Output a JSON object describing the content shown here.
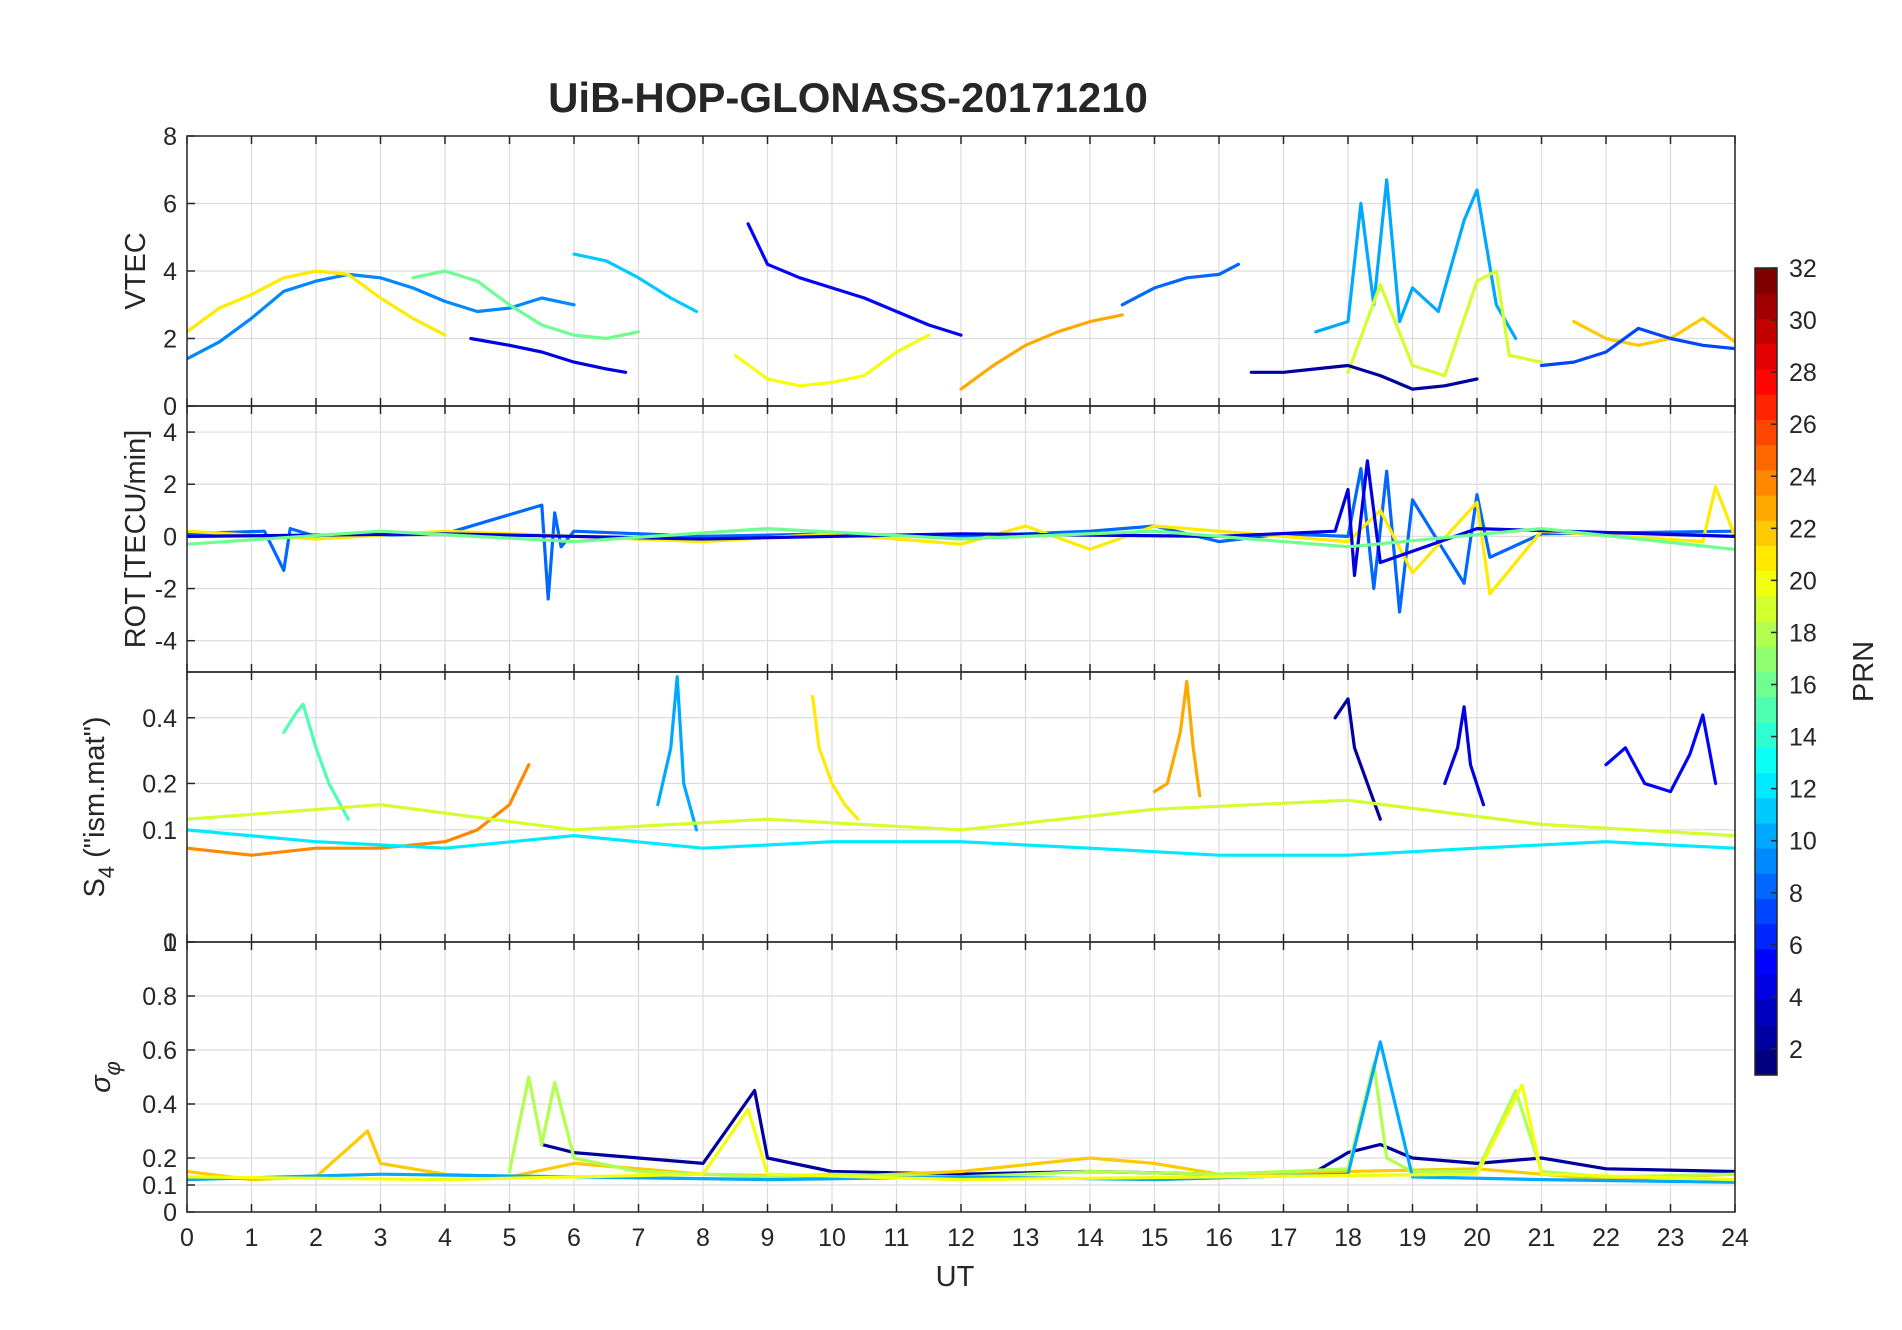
{
  "chart_data": [
    {
      "panel": "vtec",
      "type": "line",
      "title": "UiB-HOP-GLONASS-20171210",
      "ylabel": "VTEC",
      "ylim": [
        0,
        8
      ],
      "yticks": [
        "0",
        "2",
        "4",
        "6",
        "8"
      ],
      "xlim": [
        0,
        24
      ],
      "grid": true,
      "series": [
        {
          "name": "PRN 9",
          "prn": 9,
          "x": [
            0,
            0.5,
            1,
            1.5,
            2,
            2.5,
            3,
            3.5,
            4,
            4.5,
            5,
            5.5,
            6
          ],
          "values": [
            1.4,
            1.9,
            2.6,
            3.4,
            3.7,
            3.9,
            3.8,
            3.5,
            3.1,
            2.8,
            2.9,
            3.2,
            3.0
          ]
        },
        {
          "name": "PRN 21",
          "prn": 21,
          "x": [
            0,
            0.5,
            1,
            1.5,
            2,
            2.5,
            3,
            3.5,
            4
          ],
          "values": [
            2.2,
            2.9,
            3.3,
            3.8,
            4.0,
            3.9,
            3.2,
            2.6,
            2.1
          ]
        },
        {
          "name": "PRN 4",
          "prn": 4,
          "x": [
            4.4,
            5,
            5.5,
            6,
            6.5,
            6.8
          ],
          "values": [
            2.0,
            1.8,
            1.6,
            1.3,
            1.1,
            1.0
          ]
        },
        {
          "name": "PRN 5",
          "prn": 5,
          "x": [
            8.7,
            9,
            9.5,
            10,
            10.5,
            11,
            11.5,
            12
          ],
          "values": [
            5.4,
            4.2,
            3.8,
            3.5,
            3.2,
            2.8,
            2.4,
            2.1
          ]
        },
        {
          "name": "PRN 11",
          "prn": 11,
          "x": [
            6,
            6.5,
            7,
            7.5,
            7.9
          ],
          "values": [
            4.5,
            4.3,
            3.8,
            3.2,
            2.8
          ]
        },
        {
          "name": "PRN 20",
          "prn": 20,
          "x": [
            8.5,
            9,
            9.5,
            10,
            10.5,
            11,
            11.5
          ],
          "values": [
            1.5,
            0.8,
            0.6,
            0.7,
            0.9,
            1.6,
            2.1
          ]
        },
        {
          "name": "PRN 16",
          "prn": 16,
          "x": [
            3.5,
            4,
            4.5,
            5,
            5.5,
            6,
            6.5,
            7
          ],
          "values": [
            3.8,
            4.0,
            3.7,
            3.0,
            2.4,
            2.1,
            2.0,
            2.2
          ]
        },
        {
          "name": "PRN 23",
          "prn": 23,
          "x": [
            12,
            12.5,
            13,
            13.5,
            14,
            14.5
          ],
          "values": [
            0.5,
            1.2,
            1.8,
            2.2,
            2.5,
            2.7
          ]
        },
        {
          "name": "PRN 8",
          "prn": 8,
          "x": [
            14.5,
            15,
            15.5,
            16,
            16.3
          ],
          "values": [
            3.0,
            3.5,
            3.8,
            3.9,
            4.2
          ]
        },
        {
          "name": "PRN 10",
          "prn": 10,
          "x": [
            17.5,
            18,
            18.2,
            18.4,
            18.6,
            18.8,
            19,
            19.4,
            19.8,
            20,
            20.3,
            20.6
          ],
          "values": [
            2.2,
            2.5,
            6.0,
            3.0,
            6.7,
            2.5,
            3.5,
            2.8,
            5.5,
            6.4,
            3.0,
            2.0
          ]
        },
        {
          "name": "PRN 19",
          "prn": 19,
          "x": [
            18,
            18.5,
            19,
            19.5,
            20,
            20.3,
            20.5,
            21
          ],
          "values": [
            1.0,
            3.6,
            1.2,
            0.9,
            3.7,
            4.0,
            1.5,
            1.3
          ]
        },
        {
          "name": "PRN 2",
          "prn": 2,
          "x": [
            16.5,
            17,
            17.5,
            18,
            18.5,
            19,
            19.5,
            20
          ],
          "values": [
            1.0,
            1.0,
            1.1,
            1.2,
            0.9,
            0.5,
            0.6,
            0.8
          ]
        },
        {
          "name": "PRN 22",
          "prn": 22,
          "x": [
            21.5,
            22,
            22.5,
            23,
            23.5,
            24
          ],
          "values": [
            2.5,
            2.0,
            1.8,
            2.0,
            2.6,
            1.9
          ]
        },
        {
          "name": "PRN 7",
          "prn": 7,
          "x": [
            21,
            21.5,
            22,
            22.5,
            23,
            23.5,
            24
          ],
          "values": [
            1.2,
            1.3,
            1.6,
            2.3,
            2.0,
            1.8,
            1.7
          ]
        }
      ]
    },
    {
      "panel": "rot",
      "type": "line",
      "ylabel": "ROT [TECU/min]",
      "ylim": [
        -5.2,
        5
      ],
      "yticks": [
        "-4",
        "-2",
        "0",
        "2",
        "4"
      ],
      "xlim": [
        0,
        24
      ],
      "grid": true,
      "series": [
        {
          "name": "PRN 8",
          "prn": 8,
          "x": [
            0,
            1.2,
            1.5,
            1.6,
            2,
            4,
            5.5,
            5.6,
            5.7,
            5.8,
            6,
            8,
            10,
            12,
            14,
            15,
            16,
            17,
            18,
            18.2,
            18.4,
            18.6,
            18.8,
            19,
            19.8,
            20,
            20.2,
            21,
            24
          ],
          "values": [
            0.1,
            0.2,
            -1.3,
            0.3,
            0,
            0.1,
            1.2,
            -2.4,
            0.9,
            -0.4,
            0.2,
            0,
            0.1,
            0,
            0.2,
            0.4,
            -0.2,
            0.1,
            0,
            2.6,
            -2.0,
            2.5,
            -2.9,
            1.4,
            -1.8,
            1.6,
            -0.8,
            0.1,
            0.2
          ]
        },
        {
          "name": "PRN 21",
          "prn": 21,
          "x": [
            0,
            2,
            4,
            6,
            8,
            10,
            12,
            13,
            14,
            15,
            16,
            18,
            18.5,
            19,
            20,
            20.2,
            21,
            23.5,
            23.7,
            24
          ],
          "values": [
            0.2,
            -0.1,
            0.2,
            0,
            -0.2,
            0.1,
            -0.3,
            0.4,
            -0.5,
            0.4,
            0.2,
            -0.2,
            1.0,
            -1.4,
            1.3,
            -2.2,
            0.2,
            -0.2,
            1.9,
            0
          ]
        },
        {
          "name": "PRN 4",
          "prn": 4,
          "x": [
            0,
            4,
            8,
            12,
            16,
            17.8,
            18,
            18.1,
            18.3,
            18.5,
            20,
            24
          ],
          "values": [
            0,
            0.1,
            -0.1,
            0.1,
            0,
            0.2,
            1.8,
            -1.5,
            2.9,
            -1.0,
            0.3,
            0
          ]
        },
        {
          "name": "PRN 16",
          "prn": 16,
          "x": [
            0,
            3,
            6,
            9,
            12,
            15,
            18,
            21,
            24
          ],
          "values": [
            -0.3,
            0.2,
            -0.2,
            0.3,
            -0.1,
            0.2,
            -0.4,
            0.3,
            -0.5
          ]
        }
      ]
    },
    {
      "panel": "s4",
      "type": "line",
      "ylabel": "S4 (\"ism.mat\")",
      "ylabel_main": "S",
      "ylabel_sub": "4",
      "ylabel_rest": " (\"ism.mat\")",
      "yscale": "sqrt",
      "ylim": [
        0,
        0.58
      ],
      "yticks": [
        "0",
        "0.1",
        "0.2",
        "0.4"
      ],
      "xlim": [
        0,
        24
      ],
      "grid": true,
      "series": [
        {
          "name": "PRN 15",
          "prn": 15,
          "x": [
            1.5,
            1.7,
            1.8,
            2,
            2.2,
            2.5
          ],
          "values": [
            0.35,
            0.42,
            0.45,
            0.3,
            0.2,
            0.12
          ]
        },
        {
          "name": "PRN 10",
          "prn": 10,
          "x": [
            7.3,
            7.5,
            7.6,
            7.7,
            7.9
          ],
          "values": [
            0.15,
            0.3,
            0.56,
            0.2,
            0.1
          ]
        },
        {
          "name": "PRN 23",
          "prn": 23,
          "x": [
            15,
            15.2,
            15.4,
            15.5,
            15.6,
            15.7
          ],
          "values": [
            0.18,
            0.2,
            0.35,
            0.54,
            0.3,
            0.17
          ]
        },
        {
          "name": "PRN 21",
          "prn": 21,
          "x": [
            9.7,
            9.8,
            10,
            10.2,
            10.4
          ],
          "values": [
            0.48,
            0.3,
            0.2,
            0.15,
            0.12
          ]
        },
        {
          "name": "PRN 2",
          "prn": 2,
          "x": [
            17.8,
            18,
            18.1,
            18.3,
            18.5
          ],
          "values": [
            0.4,
            0.47,
            0.3,
            0.2,
            0.12
          ]
        },
        {
          "name": "PRN 4",
          "prn": 4,
          "x": [
            19.5,
            19.7,
            19.8,
            19.9,
            20.1
          ],
          "values": [
            0.2,
            0.3,
            0.44,
            0.25,
            0.15
          ]
        },
        {
          "name": "PRN 5",
          "prn": 5,
          "x": [
            22,
            22.3,
            22.6,
            23,
            23.3,
            23.5,
            23.7
          ],
          "values": [
            0.25,
            0.3,
            0.2,
            0.18,
            0.28,
            0.41,
            0.2
          ]
        },
        {
          "name": "PRN 24",
          "prn": 24,
          "x": [
            0,
            1,
            2,
            3,
            4,
            4.5,
            5,
            5.3
          ],
          "values": [
            0.07,
            0.06,
            0.07,
            0.07,
            0.08,
            0.1,
            0.15,
            0.25
          ]
        },
        {
          "name": "PRN 12",
          "prn": 12,
          "x": [
            0,
            2,
            4,
            6,
            8,
            10,
            12,
            14,
            16,
            18,
            20,
            22,
            24
          ],
          "values": [
            0.1,
            0.08,
            0.07,
            0.09,
            0.07,
            0.08,
            0.08,
            0.07,
            0.06,
            0.06,
            0.07,
            0.08,
            0.07
          ]
        },
        {
          "name": "PRN 19",
          "prn": 19,
          "x": [
            0,
            3,
            6,
            9,
            12,
            15,
            18,
            21,
            24
          ],
          "values": [
            0.12,
            0.15,
            0.1,
            0.12,
            0.1,
            0.14,
            0.16,
            0.11,
            0.09
          ]
        }
      ]
    },
    {
      "panel": "sigma_phi",
      "type": "line",
      "ylabel": "σφ",
      "ylabel_main": "σ",
      "ylabel_sub": "φ",
      "ylim": [
        0,
        1
      ],
      "yticks": [
        "0",
        "0.1",
        "0.2",
        "0.4",
        "0.6",
        "0.8",
        "1"
      ],
      "xlim": [
        0,
        24
      ],
      "xlabel": "UT",
      "xticks": [
        "0",
        "1",
        "2",
        "3",
        "4",
        "5",
        "6",
        "7",
        "8",
        "9",
        "10",
        "11",
        "12",
        "13",
        "14",
        "15",
        "16",
        "17",
        "18",
        "19",
        "20",
        "21",
        "22",
        "23",
        "24"
      ],
      "grid": true,
      "series": [
        {
          "name": "PRN 2",
          "prn": 2,
          "x": [
            5.5,
            6,
            7,
            8,
            8.8,
            9,
            10,
            12,
            14,
            16,
            17.5,
            18,
            18.5,
            19,
            20,
            21,
            22,
            24
          ],
          "values": [
            0.25,
            0.22,
            0.2,
            0.18,
            0.45,
            0.2,
            0.15,
            0.14,
            0.15,
            0.14,
            0.15,
            0.22,
            0.25,
            0.2,
            0.18,
            0.2,
            0.16,
            0.15
          ]
        },
        {
          "name": "PRN 22",
          "prn": 22,
          "x": [
            0,
            1,
            2,
            2.8,
            3,
            4,
            5,
            6,
            8,
            10,
            12,
            14,
            15,
            16,
            18,
            20,
            21,
            22,
            24
          ],
          "values": [
            0.15,
            0.12,
            0.13,
            0.3,
            0.18,
            0.14,
            0.13,
            0.18,
            0.14,
            0.13,
            0.15,
            0.2,
            0.18,
            0.14,
            0.15,
            0.16,
            0.14,
            0.12,
            0.14
          ]
        },
        {
          "name": "PRN 18",
          "prn": 18,
          "x": [
            5,
            5.3,
            5.5,
            5.7,
            6,
            7,
            8,
            9,
            10,
            12,
            14,
            16,
            18,
            18.4,
            18.6,
            19,
            20,
            20.6,
            20.8,
            21,
            22,
            24
          ],
          "values": [
            0.15,
            0.5,
            0.25,
            0.48,
            0.2,
            0.15,
            0.14,
            0.13,
            0.14,
            0.13,
            0.15,
            0.14,
            0.16,
            0.55,
            0.2,
            0.15,
            0.15,
            0.45,
            0.3,
            0.15,
            0.13,
            0.14
          ]
        },
        {
          "name": "PRN 10",
          "prn": 10,
          "x": [
            0,
            3,
            6,
            9,
            12,
            15,
            18,
            18.5,
            19,
            21,
            24
          ],
          "values": [
            0.12,
            0.14,
            0.13,
            0.12,
            0.13,
            0.12,
            0.14,
            0.63,
            0.13,
            0.12,
            0.11
          ]
        },
        {
          "name": "PRN 20",
          "prn": 20,
          "x": [
            0,
            4,
            8,
            8.7,
            9,
            12,
            16,
            20,
            20.7,
            21,
            24
          ],
          "values": [
            0.13,
            0.12,
            0.14,
            0.38,
            0.14,
            0.12,
            0.13,
            0.14,
            0.47,
            0.14,
            0.12
          ]
        }
      ]
    },
    {
      "panel": "colorbar",
      "type": "heatmap",
      "label": "PRN",
      "range": [
        1,
        32
      ],
      "ticks": [
        "2",
        "4",
        "6",
        "8",
        "10",
        "12",
        "14",
        "16",
        "18",
        "20",
        "22",
        "24",
        "26",
        "28",
        "30",
        "32"
      ],
      "colormap": "jet"
    }
  ]
}
